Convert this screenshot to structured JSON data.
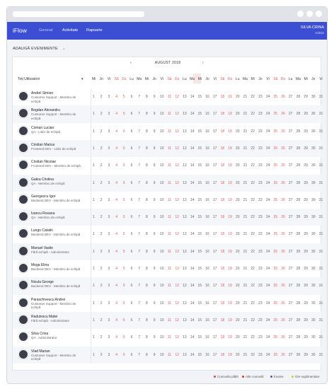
{
  "app": {
    "logo": "iFlow"
  },
  "nav": [
    {
      "label": "General"
    },
    {
      "label": "Activitate"
    },
    {
      "label": "Rapoarte"
    }
  ],
  "user": {
    "name": "SILVA CRINA",
    "role": "Admin"
  },
  "add_event": {
    "label": "ADAUGĂ EVENIMENTE"
  },
  "calendar": {
    "month": "AUGUST 2018",
    "users_header": "Toți Utilizatorii"
  },
  "weekdays": [
    "Mi",
    "Jo",
    "Vi",
    "Sâ",
    "Du",
    "Lu",
    "Ma",
    "Mi",
    "Jo",
    "Vi",
    "Sâ",
    "Du",
    "Lu",
    "Ma",
    "Mi",
    "Jo",
    "Vi",
    "Sâ",
    "Du",
    "Lu",
    "Ma",
    "Mi",
    "Jo",
    "Vi",
    "Sâ",
    "Du",
    "Lu",
    "Ma",
    "Mi",
    "Jo",
    "Vi"
  ],
  "users": [
    {
      "name": "Andrei Simion",
      "role": "Customer Support - Membru de echipă"
    },
    {
      "name": "Bogdan Alexandru",
      "role": "Customer Support - Membru de echipă"
    },
    {
      "name": "Coman Lucian",
      "role": "QA - Lider de echipă"
    },
    {
      "name": "Cristian Marius",
      "role": "Frontend DEV - Lider de echipă"
    },
    {
      "name": "Cristian Nicolae",
      "role": "Frontend DEV - Membru de echipă"
    },
    {
      "name": "Gatea Cristina",
      "role": "QA - Membru de echipă"
    },
    {
      "name": "Georgescu Igor",
      "role": "Backend DEV - Membru de echipă"
    },
    {
      "name": "Ivancu Roxana",
      "role": "QA - Membru de echipă"
    },
    {
      "name": "Lungo Catalin",
      "role": "Backend DEV - Membru de echipă"
    },
    {
      "name": "Manuel Vasile",
      "role": "Fără echipă - Administrator"
    },
    {
      "name": "Moga Elina",
      "role": "Backend DEV - Membru de echipă"
    },
    {
      "name": "Nicula George",
      "role": "Backend DEV - Membru de echipă"
    },
    {
      "name": "Paraschivescu Andrei",
      "role": "Customer Support - Membru de echipă"
    },
    {
      "name": "Radulescu Matei",
      "role": "Fără echipă - Administrator"
    },
    {
      "name": "Silva Crina",
      "role": "QA - Administrator"
    },
    {
      "name": "Vlad Marian",
      "role": "Customer Support - Membru de echipă"
    }
  ],
  "legend": [
    {
      "label": "Concediu plătit",
      "color": "#e0483e"
    },
    {
      "label": "Alte concedii",
      "color": "#c93a3a"
    },
    {
      "label": "Învoire",
      "color": "#4b4fd6"
    },
    {
      "label": "Ore suplimentare",
      "color": "#b9d531"
    }
  ]
}
